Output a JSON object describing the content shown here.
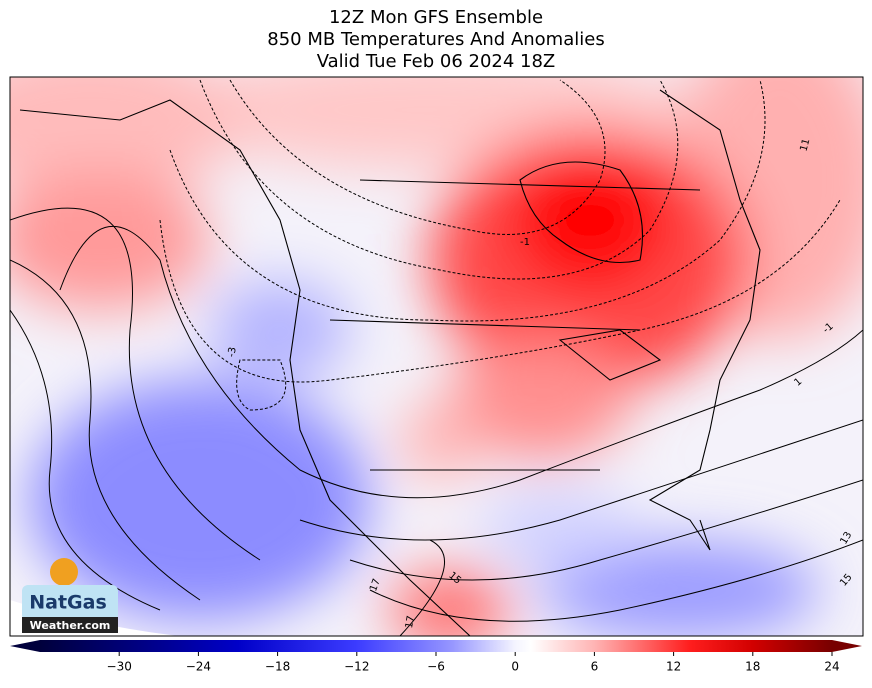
{
  "header": {
    "lines": [
      "12Z Mon GFS Ensemble",
      "850 MB Temperatures And Anomalies",
      "Valid Tue Feb 06 2024 18Z"
    ]
  },
  "colorbar": {
    "range": [
      -36,
      24
    ],
    "ticks": [
      {
        "value": -30,
        "label": "−30"
      },
      {
        "value": -24,
        "label": "−24"
      },
      {
        "value": -18,
        "label": "−18"
      },
      {
        "value": -12,
        "label": "−12"
      },
      {
        "value": -6,
        "label": "−6"
      },
      0,
      6,
      12,
      18,
      24
    ]
  },
  "contour_labels": [
    "-3",
    "-1",
    "11",
    "-1",
    "1",
    "13",
    "15",
    "15",
    "17",
    "17"
  ],
  "logo": {
    "name": "NatGas",
    "site": "Weather.com"
  }
}
